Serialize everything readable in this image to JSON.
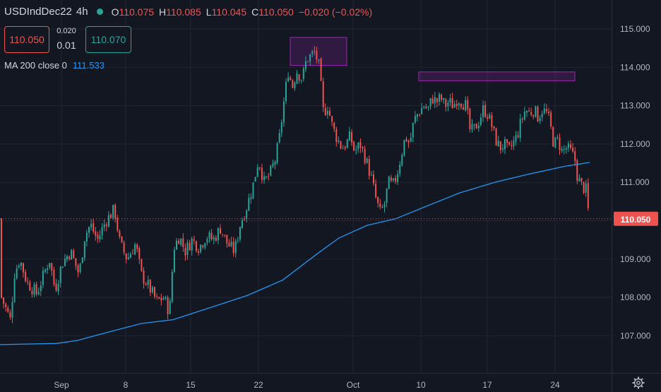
{
  "header": {
    "symbol": "USDIndDec22",
    "timeframe": "4h",
    "open_label": "O",
    "open": "110.075",
    "high_label": "H",
    "high": "110.085",
    "low_label": "L",
    "low": "110.045",
    "close_label": "C",
    "close": "110.050",
    "change": "−0.020 (−0.02%)"
  },
  "trade": {
    "sell_price": "110.050",
    "buy_price": "110.070",
    "spread_top": "0.020",
    "spread_bottom": "0.01"
  },
  "indicator": {
    "label": "MA 200 close 0",
    "value": "111.533",
    "color": "#2196f3"
  },
  "colors": {
    "up": "#26a69a",
    "down": "#ef5350",
    "background": "#131722",
    "grid": "#1f2431",
    "highlight_box": "#9c27b0"
  },
  "chart_data": {
    "type": "candlestick",
    "y_axis": {
      "ticks": [
        "115.000",
        "114.000",
        "113.000",
        "112.000",
        "111.000",
        "110.000",
        "109.000",
        "108.000",
        "107.000"
      ],
      "ylim": [
        106.35,
        115.85
      ]
    },
    "x_axis": {
      "ticks": [
        "Sep",
        "8",
        "15",
        "22",
        "Oct",
        "10",
        "17",
        "24"
      ]
    },
    "last_price": {
      "value": 110.05,
      "label": "110.050"
    },
    "grid": true,
    "highlight_boxes": [
      {
        "from": "Sep 25",
        "to": "Sep 28",
        "low": 114.05,
        "high": 114.78
      },
      {
        "from": "Oct 9",
        "to": "Oct 26",
        "low": 113.65,
        "high": 113.88
      }
    ],
    "ma200": [
      [
        0,
        106.77
      ],
      [
        80,
        106.8
      ],
      [
        110,
        106.88
      ],
      [
        150,
        107.08
      ],
      [
        200,
        107.32
      ],
      [
        245,
        107.42
      ],
      [
        300,
        107.75
      ],
      [
        350,
        108.05
      ],
      [
        400,
        108.45
      ],
      [
        450,
        109.15
      ],
      [
        480,
        109.55
      ],
      [
        520,
        109.88
      ],
      [
        560,
        110.05
      ],
      [
        600,
        110.35
      ],
      [
        650,
        110.72
      ],
      [
        700,
        111.0
      ],
      [
        750,
        111.22
      ],
      [
        800,
        111.42
      ],
      [
        835,
        111.52
      ]
    ],
    "price_path": [
      [
        2,
        108.0
      ],
      [
        15,
        107.4
      ],
      [
        20,
        108.6
      ],
      [
        28,
        109.0
      ],
      [
        38,
        108.4
      ],
      [
        52,
        108.1
      ],
      [
        60,
        108.5
      ],
      [
        70,
        109.0
      ],
      [
        78,
        108.2
      ],
      [
        88,
        108.9
      ],
      [
        100,
        109.2
      ],
      [
        112,
        108.6
      ],
      [
        120,
        109.6
      ],
      [
        128,
        109.9
      ],
      [
        138,
        109.5
      ],
      [
        150,
        110.0
      ],
      [
        162,
        110.3
      ],
      [
        170,
        109.4
      ],
      [
        180,
        109.0
      ],
      [
        192,
        109.4
      ],
      [
        200,
        108.6
      ],
      [
        210,
        108.3
      ],
      [
        222,
        107.9
      ],
      [
        232,
        108.0
      ],
      [
        240,
        107.6
      ],
      [
        246,
        109.3
      ],
      [
        254,
        109.6
      ],
      [
        262,
        109.2
      ],
      [
        272,
        109.5
      ],
      [
        282,
        109.3
      ],
      [
        292,
        109.6
      ],
      [
        302,
        109.5
      ],
      [
        312,
        109.8
      ],
      [
        322,
        109.4
      ],
      [
        332,
        109.2
      ],
      [
        340,
        109.9
      ],
      [
        350,
        110.4
      ],
      [
        358,
        110.9
      ],
      [
        366,
        111.6
      ],
      [
        374,
        111.0
      ],
      [
        382,
        111.2
      ],
      [
        390,
        111.6
      ],
      [
        396,
        112.2
      ],
      [
        402,
        113.1
      ],
      [
        408,
        113.9
      ],
      [
        414,
        113.5
      ],
      [
        420,
        113.9
      ],
      [
        428,
        113.7
      ],
      [
        434,
        114.2
      ],
      [
        440,
        114.3
      ],
      [
        446,
        114.4
      ],
      [
        452,
        114.0
      ],
      [
        458,
        112.8
      ],
      [
        464,
        113.0
      ],
      [
        470,
        112.5
      ],
      [
        476,
        112.2
      ],
      [
        484,
        111.9
      ],
      [
        490,
        112.0
      ],
      [
        496,
        112.2
      ],
      [
        502,
        111.8
      ],
      [
        510,
        112.0
      ],
      [
        518,
        111.6
      ],
      [
        526,
        111.1
      ],
      [
        532,
        110.6
      ],
      [
        538,
        110.2
      ],
      [
        544,
        110.4
      ],
      [
        550,
        111.0
      ],
      [
        556,
        110.9
      ],
      [
        562,
        111.2
      ],
      [
        568,
        111.7
      ],
      [
        574,
        112.2
      ],
      [
        580,
        112.0
      ],
      [
        586,
        112.6
      ],
      [
        592,
        112.8
      ],
      [
        600,
        113.0
      ],
      [
        606,
        112.9
      ],
      [
        612,
        113.2
      ],
      [
        618,
        113.1
      ],
      [
        624,
        113.2
      ],
      [
        630,
        113.0
      ],
      [
        636,
        113.1
      ],
      [
        642,
        113.0
      ],
      [
        648,
        113.2
      ],
      [
        654,
        113.1
      ],
      [
        660,
        113.0
      ],
      [
        666,
        112.3
      ],
      [
        672,
        112.4
      ],
      [
        678,
        112.6
      ],
      [
        684,
        112.9
      ],
      [
        690,
        112.8
      ],
      [
        696,
        112.5
      ],
      [
        702,
        112.1
      ],
      [
        708,
        111.9
      ],
      [
        714,
        112.0
      ],
      [
        720,
        111.8
      ],
      [
        726,
        112.0
      ],
      [
        732,
        112.2
      ],
      [
        738,
        112.6
      ],
      [
        744,
        112.9
      ],
      [
        750,
        112.8
      ],
      [
        756,
        112.9
      ],
      [
        762,
        112.7
      ],
      [
        768,
        112.9
      ],
      [
        774,
        112.8
      ],
      [
        778,
        112.6
      ],
      [
        784,
        112.0
      ],
      [
        790,
        112.1
      ],
      [
        796,
        111.8
      ],
      [
        802,
        111.9
      ],
      [
        808,
        111.8
      ],
      [
        814,
        111.6
      ],
      [
        818,
        111.1
      ],
      [
        824,
        110.9
      ],
      [
        830,
        110.8
      ],
      [
        834,
        110.05
      ]
    ]
  }
}
